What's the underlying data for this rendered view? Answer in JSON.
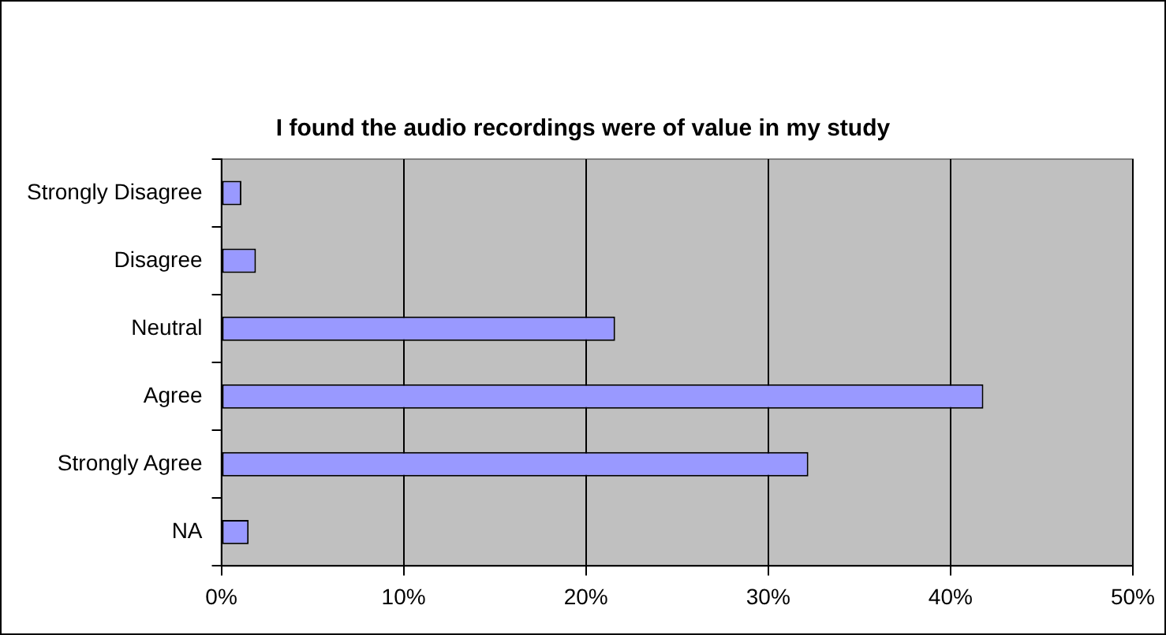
{
  "chart_data": {
    "type": "bar",
    "orientation": "horizontal",
    "title": "I found the audio recordings were of value in my study",
    "categories": [
      "Strongly Disagree",
      "Disagree",
      "Neutral",
      "Agree",
      "Strongly Agree",
      "NA"
    ],
    "values": [
      1.1,
      1.9,
      21.6,
      41.8,
      32.2,
      1.5
    ],
    "color": "#9999ff",
    "xlim": [
      0,
      50
    ],
    "xticks": [
      {
        "value": 0,
        "label": "0%"
      },
      {
        "value": 10,
        "label": "10%"
      },
      {
        "value": 20,
        "label": "20%"
      },
      {
        "value": 30,
        "label": "30%"
      },
      {
        "value": 40,
        "label": "40%"
      },
      {
        "value": 50,
        "label": "50%"
      }
    ],
    "grid": "x",
    "legend": false
  }
}
